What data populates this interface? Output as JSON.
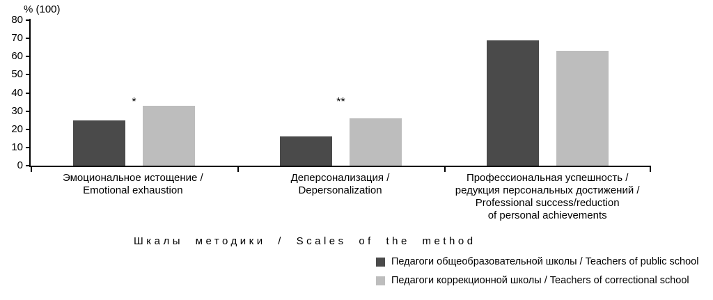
{
  "chart_data": {
    "type": "bar",
    "title": "",
    "ylabel": "% (100)",
    "xlabel": "Шкалы методики / Scales of the method",
    "ylim": [
      0,
      80
    ],
    "yticks": [
      0,
      10,
      20,
      30,
      40,
      50,
      60,
      70,
      80
    ],
    "grid": false,
    "legend_position": "bottom-right",
    "categories": [
      "Эмоциональное истощение /\nEmotional exhaustion",
      "Деперсонализация /\nDepersonalization",
      "Профессиональная успешность /\nредукция персональных достижений /\nProfessional success/reduction\nof personal achievements"
    ],
    "series": [
      {
        "name": "Педагоги общеобразовательной школы / Teachers of public school",
        "color": "#4a4a4a",
        "values": [
          25,
          16,
          69
        ]
      },
      {
        "name": "Педагоги коррекционной школы / Teachers of correctional school",
        "color": "#bdbdbd",
        "values": [
          33,
          26,
          63
        ]
      }
    ],
    "annotations": [
      {
        "text": "*",
        "group": 0,
        "y": 34
      },
      {
        "text": "**",
        "group": 1,
        "y": 34
      }
    ]
  }
}
